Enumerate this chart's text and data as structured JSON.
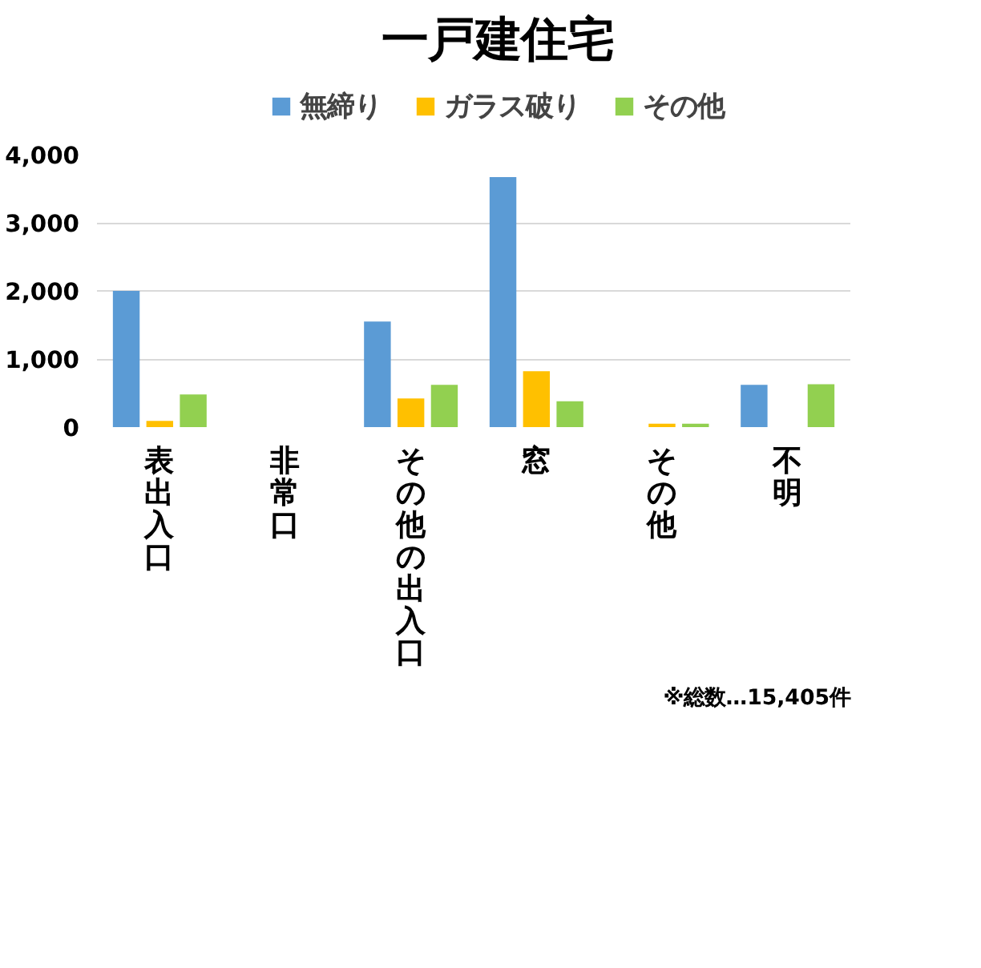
{
  "chart_data": {
    "type": "bar",
    "title": "一戸建住宅",
    "categories": [
      "表出入口",
      "非常口",
      "その他の出入口",
      "窓",
      "その他",
      "不明"
    ],
    "series": [
      {
        "name": "無締り",
        "color": "#5b9bd5",
        "values": [
          2000,
          0,
          1550,
          3670,
          0,
          620
        ]
      },
      {
        "name": "ガラス破り",
        "color": "#ffc000",
        "values": [
          90,
          0,
          420,
          820,
          50,
          0
        ]
      },
      {
        "name": "その他",
        "color": "#92d050",
        "values": [
          480,
          0,
          620,
          380,
          50,
          630
        ]
      }
    ],
    "ylim": [
      0,
      4000
    ],
    "yticks": [
      0,
      {
        "value": 1000,
        "label": "1,000"
      },
      {
        "value": 2000,
        "label": "2,000"
      },
      {
        "value": 3000,
        "label": "3,000"
      },
      {
        "value": 4000,
        "label": "4,000"
      }
    ],
    "grid": "y",
    "legend": "top",
    "annotations": [
      "※総数…15,405件"
    ]
  }
}
